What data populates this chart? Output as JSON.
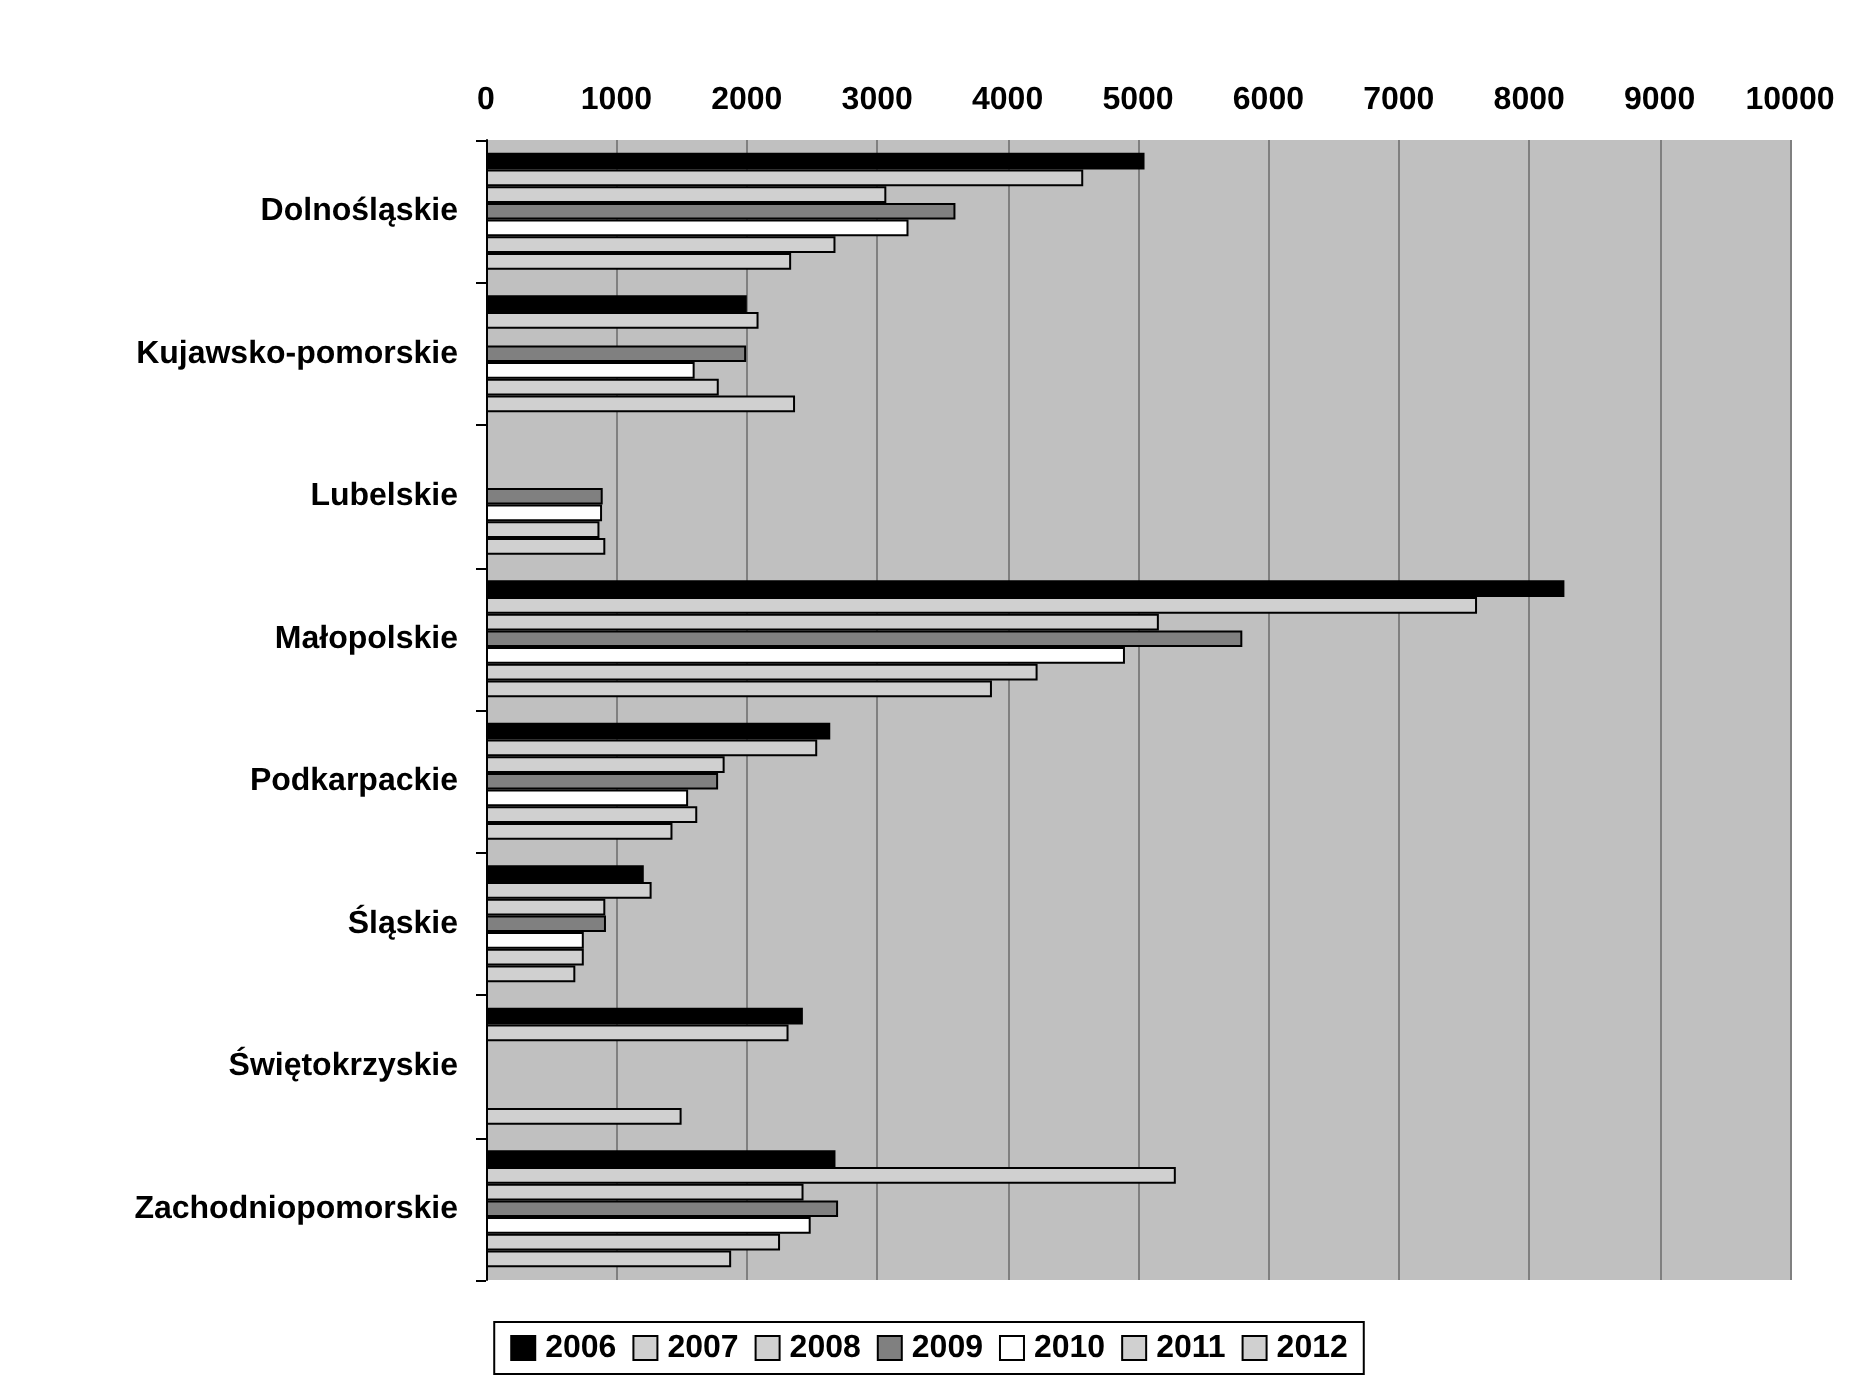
{
  "chart_data": {
    "type": "bar",
    "orientation": "horizontal",
    "categories": [
      "Dolnośląskie",
      "Kujawsko-pomorskie",
      "Lubelskie",
      "Małopolskie",
      "Podkarpackie",
      "Śląskie",
      "Świętokrzyskie",
      "Zachodniopomorskie"
    ],
    "series": [
      {
        "name": "2006",
        "color": "#000000",
        "values": [
          5050,
          2000,
          null,
          8270,
          2640,
          1210,
          2430,
          2680
        ]
      },
      {
        "name": "2007",
        "color": "#d0d0d0",
        "values": [
          4580,
          2090,
          null,
          7600,
          2540,
          1270,
          2320,
          5290
        ]
      },
      {
        "name": "2008",
        "color": "#d0d0d0",
        "values": [
          3070,
          null,
          null,
          5160,
          1830,
          915,
          null,
          2435
        ]
      },
      {
        "name": "2009",
        "color": "#808080",
        "values": [
          3600,
          1995,
          895,
          5800,
          1780,
          920,
          null,
          2700
        ]
      },
      {
        "name": "2010",
        "color": "#ffffff",
        "values": [
          3240,
          1600,
          890,
          4900,
          1550,
          750,
          null,
          2490
        ]
      },
      {
        "name": "2011",
        "color": "#d0d0d0",
        "values": [
          2680,
          1785,
          870,
          4230,
          1620,
          750,
          null,
          2255
        ]
      },
      {
        "name": "2012",
        "color": "#d0d0d0",
        "values": [
          2340,
          2370,
          915,
          3880,
          1430,
          685,
          1500,
          1880
        ]
      }
    ],
    "xlim": [
      0,
      10000
    ],
    "xticks": [
      0,
      1000,
      2000,
      3000,
      4000,
      5000,
      6000,
      7000,
      8000,
      9000,
      10000
    ],
    "grid": "x",
    "legend": "bottom"
  }
}
